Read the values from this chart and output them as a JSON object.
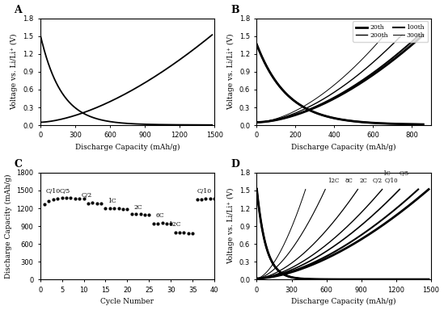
{
  "panel_A": {
    "label": "A",
    "xlabel": "Discharge Capacity (mAh/g)",
    "ylabel": "Voltage vs. Li/Li⁺ (V)",
    "xlim": [
      0,
      1500
    ],
    "ylim": [
      0,
      1.8
    ],
    "xticks": [
      0,
      300,
      600,
      900,
      1200,
      1500
    ],
    "yticks": [
      0,
      0.3,
      0.6,
      0.9,
      1.2,
      1.5,
      1.8
    ]
  },
  "panel_B": {
    "label": "B",
    "xlabel": "Discharge Capacity (mAh/g)",
    "ylabel": "Voltage vs. Li/Li⁺ (V)",
    "xlim": [
      0,
      900
    ],
    "ylim": [
      0,
      1.8
    ],
    "xticks": [
      0,
      200,
      400,
      600,
      800
    ],
    "yticks": [
      0,
      0.3,
      0.6,
      0.9,
      1.2,
      1.5,
      1.8
    ],
    "legend": [
      "20th",
      "200th",
      "100th",
      "300th"
    ],
    "max_caps": [
      860,
      840,
      750,
      660
    ],
    "linewidths": [
      2.0,
      1.5,
      1.0,
      0.7
    ]
  },
  "panel_C": {
    "label": "C",
    "xlabel": "Cycle Number",
    "ylabel": "Discharge Capacity (mAh/g)",
    "xlim": [
      0,
      40
    ],
    "ylim": [
      0,
      1800
    ],
    "xticks": [
      0,
      5,
      10,
      15,
      20,
      25,
      30,
      35,
      40
    ],
    "yticks": [
      0,
      300,
      600,
      900,
      1200,
      1500,
      1800
    ],
    "data_x": [
      1,
      2,
      3,
      4,
      5,
      6,
      7,
      8,
      9,
      10,
      11,
      12,
      13,
      14,
      15,
      16,
      17,
      18,
      19,
      20,
      21,
      22,
      23,
      24,
      25,
      26,
      27,
      28,
      29,
      30,
      31,
      32,
      33,
      34,
      35,
      36,
      37,
      38,
      39,
      40
    ],
    "data_y": [
      1270,
      1330,
      1355,
      1365,
      1375,
      1380,
      1375,
      1370,
      1365,
      1360,
      1285,
      1295,
      1285,
      1285,
      1195,
      1200,
      1195,
      1195,
      1192,
      1190,
      1105,
      1105,
      1100,
      1095,
      1090,
      945,
      945,
      955,
      942,
      940,
      795,
      793,
      790,
      782,
      780,
      1355,
      1355,
      1362,
      1360,
      1358
    ],
    "label_positions": [
      [
        "C/10",
        1.2,
        1430
      ],
      [
        "C/5",
        4.5,
        1430
      ],
      [
        "C/2",
        9.5,
        1360
      ],
      [
        "1C",
        15.5,
        1265
      ],
      [
        "2C",
        21.5,
        1165
      ],
      [
        "6C",
        26.5,
        1025
      ],
      [
        "12C",
        29.5,
        870
      ],
      [
        "C/10",
        36.0,
        1430
      ]
    ]
  },
  "panel_D": {
    "label": "D",
    "xlabel": "Discharge Capacity (mAh/g)",
    "ylabel": "Voltage vs. Li/Li⁺ (V)",
    "xlim": [
      0,
      1500
    ],
    "ylim": [
      0,
      1.8
    ],
    "xticks": [
      0,
      300,
      600,
      900,
      1200,
      1500
    ],
    "yticks": [
      0,
      0.3,
      0.6,
      0.9,
      1.2,
      1.5,
      1.8
    ],
    "rates": [
      {
        "name": "C/10",
        "max_cap": 1480,
        "lw": 2.0
      },
      {
        "name": "C/5",
        "max_cap": 1390,
        "lw": 1.5
      },
      {
        "name": "C/2",
        "max_cap": 1230,
        "lw": 1.2
      },
      {
        "name": "1C",
        "max_cap": 1080,
        "lw": 1.0
      },
      {
        "name": "2C",
        "max_cap": 870,
        "lw": 0.9
      },
      {
        "name": "8C",
        "max_cap": 590,
        "lw": 0.8
      },
      {
        "name": "12C",
        "max_cap": 420,
        "lw": 0.7
      }
    ],
    "label_D": [
      [
        "1C",
        1120,
        1.73
      ],
      [
        "C/5",
        1270,
        1.73
      ],
      [
        "12C",
        660,
        1.61
      ],
      [
        "8C",
        790,
        1.61
      ],
      [
        "2C",
        920,
        1.61
      ],
      [
        "C/2",
        1040,
        1.61
      ],
      [
        "C/10",
        1160,
        1.61
      ]
    ]
  }
}
